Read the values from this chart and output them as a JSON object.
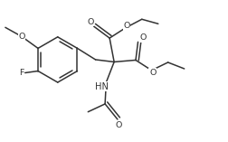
{
  "bg": "#ffffff",
  "lc": "#333333",
  "lw": 1.1,
  "fs": 6.8,
  "xlim": [
    0.0,
    10.0
  ],
  "ylim": [
    0.0,
    6.2
  ]
}
